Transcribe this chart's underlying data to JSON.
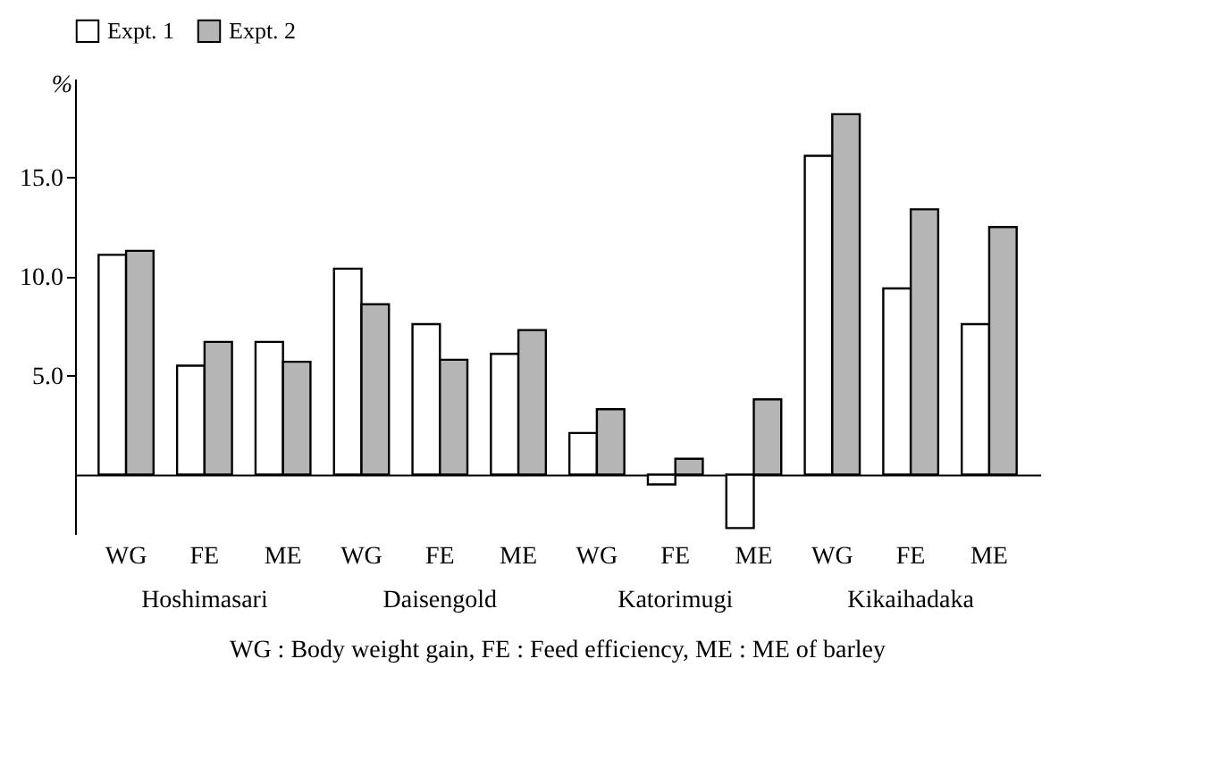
{
  "chart_data": {
    "type": "bar",
    "categories": [
      "WG",
      "FE",
      "ME",
      "WG",
      "FE",
      "ME",
      "WG",
      "FE",
      "ME",
      "WG",
      "FE",
      "ME"
    ],
    "series": [
      {
        "name": "Expt. 1",
        "color": "#ffffff",
        "values": [
          11.1,
          5.5,
          6.7,
          10.4,
          7.6,
          6.1,
          2.1,
          -0.5,
          -2.7,
          16.1,
          9.4,
          7.6
        ]
      },
      {
        "name": "Expt. 2",
        "color": "#b5b5b5",
        "values": [
          11.3,
          6.7,
          5.7,
          8.6,
          5.8,
          7.3,
          3.3,
          0.8,
          3.8,
          18.2,
          13.4,
          12.5
        ]
      }
    ],
    "ylabel": "%",
    "ylim": [
      -3,
      20
    ],
    "yticks": [
      {
        "value": 5,
        "label": "5.0"
      },
      {
        "value": 10,
        "label": "10.0"
      },
      {
        "value": 15,
        "label": "15.0"
      }
    ],
    "annotations": [
      "Hoshimasari",
      "Daisengold",
      "Katorimugi",
      "Kikaihadaka",
      "WG : Body weight gain,  FE : Feed efficiency,  ME : ME of barley"
    ],
    "legend": "top",
    "grid": false
  }
}
